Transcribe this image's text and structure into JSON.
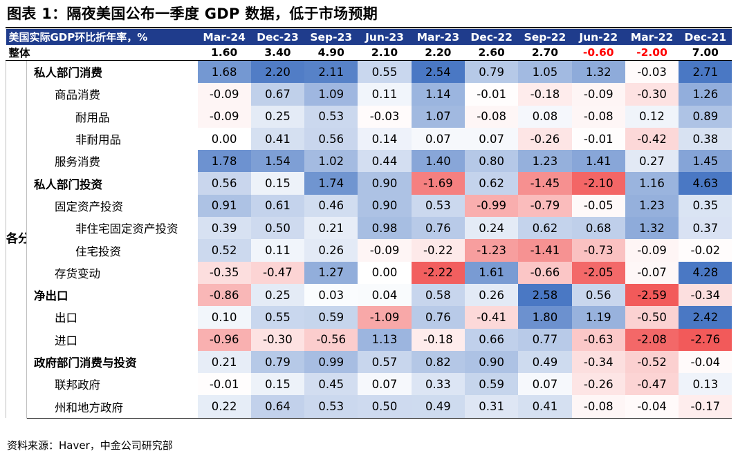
{
  "title": "图表 1：隔夜美国公布一季度 GDP 数据，低于市场预期",
  "header_label": "美国实际GDP环比折年率，%",
  "side_label": "各分项拉动",
  "source": "资料来源：Haver，中金公司研究部",
  "colors": {
    "header_bg": "#1f3c8c",
    "positive_max": "#4a78c4",
    "negative_max": "#f25a5a",
    "negative_text": "#ff0000"
  },
  "chart_data": {
    "type": "table",
    "columns": [
      "Mar-24",
      "Dec-23",
      "Sep-23",
      "Jun-23",
      "Mar-23",
      "Dec-22",
      "Sep-22",
      "Jun-22",
      "Mar-22",
      "Dec-21"
    ],
    "total": {
      "label": "整体",
      "values": [
        "1.60",
        "3.40",
        "4.90",
        "2.10",
        "2.20",
        "2.60",
        "2.70",
        "-0.60",
        "-2.00",
        "7.00"
      ]
    },
    "rows": [
      {
        "label": "私人部门消费",
        "level": 0,
        "values": [
          "1.68",
          "2.20",
          "2.11",
          "0.55",
          "2.54",
          "0.79",
          "1.05",
          "1.32",
          "-0.03",
          "2.71"
        ]
      },
      {
        "label": "商品消费",
        "level": 1,
        "values": [
          "-0.09",
          "0.67",
          "1.09",
          "0.11",
          "1.14",
          "-0.01",
          "-0.18",
          "-0.09",
          "-0.30",
          "1.26"
        ]
      },
      {
        "label": "耐用品",
        "level": 2,
        "values": [
          "-0.09",
          "0.25",
          "0.53",
          "-0.03",
          "1.07",
          "-0.08",
          "0.08",
          "-0.08",
          "0.12",
          "0.89"
        ]
      },
      {
        "label": "非耐用品",
        "level": 2,
        "values": [
          "0.00",
          "0.41",
          "0.56",
          "0.14",
          "0.07",
          "0.07",
          "-0.26",
          "-0.01",
          "-0.42",
          "0.38"
        ]
      },
      {
        "label": "服务消费",
        "level": 1,
        "values": [
          "1.78",
          "1.54",
          "1.02",
          "0.44",
          "1.40",
          "0.80",
          "1.23",
          "1.41",
          "0.27",
          "1.45"
        ]
      },
      {
        "label": "私人部门投资",
        "level": 0,
        "values": [
          "0.56",
          "0.15",
          "1.74",
          "0.90",
          "-1.69",
          "0.62",
          "-1.45",
          "-2.10",
          "1.16",
          "4.63"
        ]
      },
      {
        "label": "固定资产投资",
        "level": 1,
        "values": [
          "0.91",
          "0.61",
          "0.46",
          "0.90",
          "0.53",
          "-0.99",
          "-0.79",
          "-0.05",
          "1.23",
          "0.35"
        ]
      },
      {
        "label": "非住宅固定资产投资",
        "level": 2,
        "values": [
          "0.39",
          "0.50",
          "0.21",
          "0.98",
          "0.76",
          "0.24",
          "0.62",
          "0.68",
          "1.32",
          "0.37"
        ]
      },
      {
        "label": "住宅投资",
        "level": 2,
        "values": [
          "0.52",
          "0.11",
          "0.26",
          "-0.09",
          "-0.22",
          "-1.23",
          "-1.41",
          "-0.73",
          "-0.09",
          "-0.02"
        ]
      },
      {
        "label": "存货变动",
        "level": 1,
        "values": [
          "-0.35",
          "-0.47",
          "1.27",
          "0.00",
          "-2.22",
          "1.61",
          "-0.66",
          "-2.05",
          "-0.07",
          "4.28"
        ]
      },
      {
        "label": "净出口",
        "level": 0,
        "values": [
          "-0.86",
          "0.25",
          "0.03",
          "0.04",
          "0.58",
          "0.26",
          "2.58",
          "0.56",
          "-2.59",
          "-0.34"
        ]
      },
      {
        "label": "出口",
        "level": 1,
        "values": [
          "0.10",
          "0.55",
          "0.59",
          "-1.09",
          "0.76",
          "-0.41",
          "1.80",
          "1.19",
          "-0.50",
          "2.42"
        ]
      },
      {
        "label": "进口",
        "level": 1,
        "values": [
          "-0.96",
          "-0.30",
          "-0.56",
          "1.13",
          "-0.18",
          "0.66",
          "0.77",
          "-0.63",
          "-2.08",
          "-2.76"
        ]
      },
      {
        "label": "政府部门消费与投资",
        "level": 0,
        "values": [
          "0.21",
          "0.79",
          "0.99",
          "0.57",
          "0.82",
          "0.90",
          "0.49",
          "-0.34",
          "-0.52",
          "-0.04"
        ]
      },
      {
        "label": "联邦政府",
        "level": 1,
        "values": [
          "-0.01",
          "0.15",
          "0.45",
          "0.07",
          "0.33",
          "0.59",
          "0.07",
          "-0.26",
          "-0.47",
          "0.13"
        ]
      },
      {
        "label": "州和地方政府",
        "level": 1,
        "values": [
          "0.22",
          "0.64",
          "0.53",
          "0.50",
          "0.49",
          "0.31",
          "0.41",
          "-0.08",
          "-0.04",
          "-0.17"
        ]
      }
    ]
  }
}
